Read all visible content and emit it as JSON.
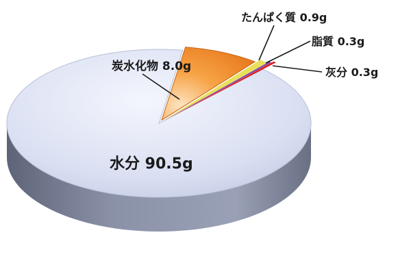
{
  "chart_data": {
    "type": "pie",
    "style": "3d-exploded",
    "slices": [
      {
        "name": "水分",
        "value": 90.5,
        "unit": "g",
        "label": "水分 90.5g",
        "color": "#dde3f5"
      },
      {
        "name": "炭水化物",
        "value": 8.0,
        "unit": "g",
        "label": "炭水化物 8.0g",
        "color": "#f59a3c"
      },
      {
        "name": "たんぱく質",
        "value": 0.9,
        "unit": "g",
        "label": "たんぱく質 0.9g",
        "color": "#e8e05a"
      },
      {
        "name": "脂質",
        "value": 0.3,
        "unit": "g",
        "label": "脂質 0.3g",
        "color": "#8a4aa8"
      },
      {
        "name": "灰分",
        "value": 0.3,
        "unit": "g",
        "label": "灰分 0.3g",
        "color": "#e02020"
      }
    ],
    "exploded": [
      "炭水化物",
      "たんぱく質",
      "脂質",
      "灰分"
    ],
    "legend": "none",
    "labels": "callouts"
  }
}
